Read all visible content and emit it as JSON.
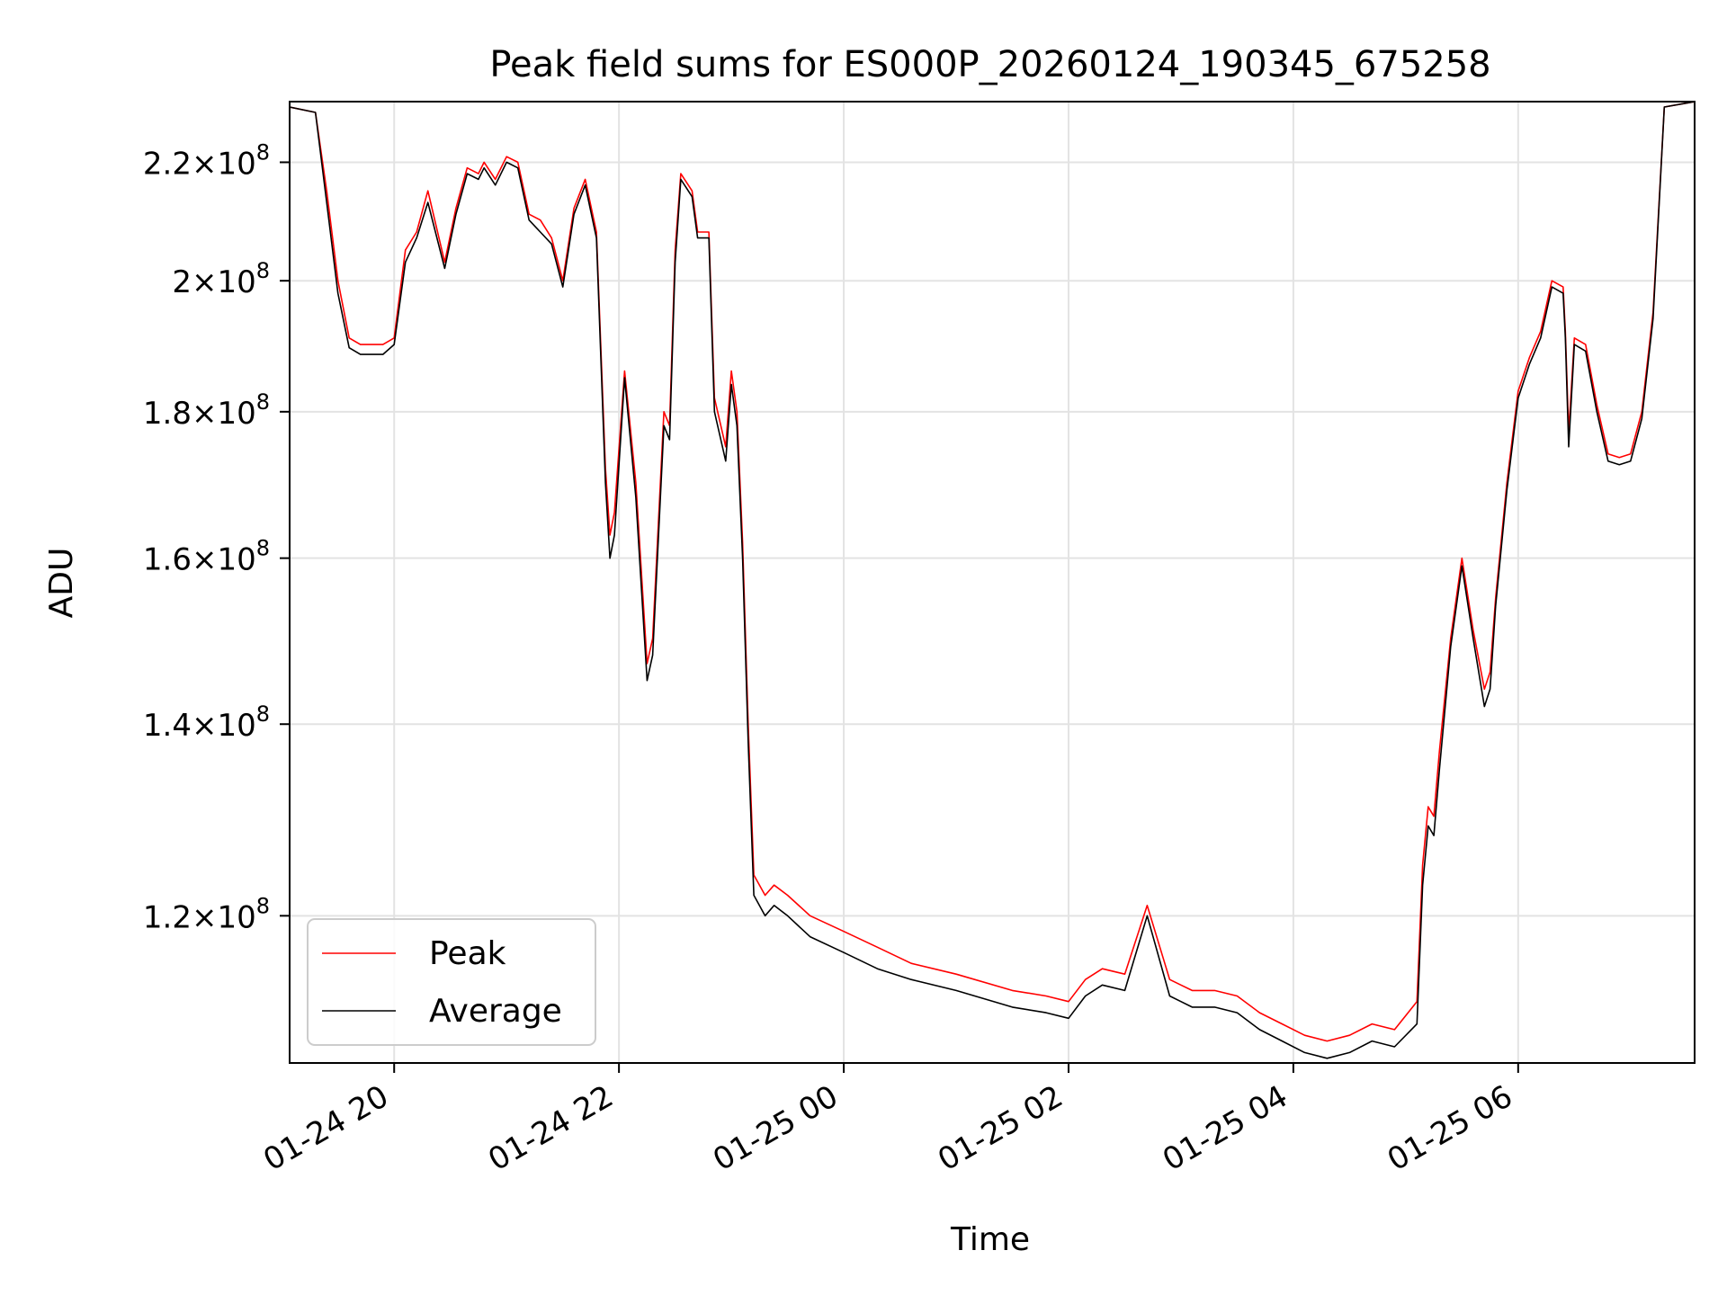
{
  "chart_data": {
    "type": "line",
    "title": "Peak field sums for ES000P_20260124_190345_675258",
    "xlabel": "Time",
    "ylabel": "ADU",
    "x_unit": "hours since 01-24 00:00",
    "xlim": [
      19.07,
      31.57
    ],
    "ylim": [
      106600000.0,
      231000000.0
    ],
    "y_scale": "log",
    "grid": true,
    "legend_position": "lower-left",
    "x_ticks": [
      {
        "value": 20,
        "label": "01-24 20"
      },
      {
        "value": 22,
        "label": "01-24 22"
      },
      {
        "value": 24,
        "label": "01-25 00"
      },
      {
        "value": 26,
        "label": "01-25 02"
      },
      {
        "value": 28,
        "label": "01-25 04"
      },
      {
        "value": 30,
        "label": "01-25 06"
      }
    ],
    "y_ticks": [
      {
        "value": 120000000.0,
        "label_mantissa": "1.2",
        "label_exp": "8"
      },
      {
        "value": 140000000.0,
        "label_mantissa": "1.4",
        "label_exp": "8"
      },
      {
        "value": 160000000.0,
        "label_mantissa": "1.6",
        "label_exp": "8"
      },
      {
        "value": 180000000.0,
        "label_mantissa": "1.8",
        "label_exp": "8"
      },
      {
        "value": 200000000.0,
        "label_mantissa": "2",
        "label_exp": "8"
      },
      {
        "value": 220000000.0,
        "label_mantissa": "2.2",
        "label_exp": "8"
      }
    ],
    "series": [
      {
        "name": "Peak",
        "color": "#ff0000",
        "x": [
          19.07,
          19.3,
          19.4,
          19.5,
          19.6,
          19.7,
          19.9,
          20.0,
          20.1,
          20.2,
          20.3,
          20.45,
          20.55,
          20.65,
          20.75,
          20.8,
          20.9,
          21.0,
          21.1,
          21.2,
          21.3,
          21.4,
          21.5,
          21.6,
          21.7,
          21.8,
          21.88,
          21.92,
          21.96,
          22.05,
          22.15,
          22.25,
          22.3,
          22.4,
          22.45,
          22.5,
          22.55,
          22.65,
          22.7,
          22.8,
          22.85,
          22.95,
          23.0,
          23.05,
          23.1,
          23.15,
          23.2,
          23.3,
          23.38,
          23.5,
          23.7,
          24.0,
          24.3,
          24.6,
          25.0,
          25.5,
          25.8,
          26.0,
          26.15,
          26.3,
          26.5,
          26.7,
          26.9,
          27.0,
          27.1,
          27.3,
          27.5,
          27.7,
          27.9,
          28.1,
          28.3,
          28.5,
          28.7,
          28.9,
          29.1,
          29.15,
          29.2,
          29.25,
          29.3,
          29.4,
          29.5,
          29.6,
          29.7,
          29.75,
          29.8,
          29.9,
          30.0,
          30.1,
          30.2,
          30.3,
          30.4,
          30.42,
          30.45,
          30.5,
          30.6,
          30.7,
          30.8,
          30.9,
          31.0,
          31.1,
          31.2,
          31.3,
          31.57
        ],
        "y": [
          230000000.0,
          229000000.0,
          215000000.0,
          200000000.0,
          191000000.0,
          190000000.0,
          190000000.0,
          191000000.0,
          205000000.0,
          208000000.0,
          215000000.0,
          203000000.0,
          212000000.0,
          219000000.0,
          218000000.0,
          220000000.0,
          217000000.0,
          221000000.0,
          220000000.0,
          211000000.0,
          210000000.0,
          207000000.0,
          200000000.0,
          212000000.0,
          217000000.0,
          208000000.0,
          172000000.0,
          163000000.0,
          166000000.0,
          186000000.0,
          170000000.0,
          147000000.0,
          150000000.0,
          180000000.0,
          178000000.0,
          205000000.0,
          218000000.0,
          215000000.0,
          208000000.0,
          208000000.0,
          182000000.0,
          175000000.0,
          186000000.0,
          180000000.0,
          162000000.0,
          140000000.0,
          124000000.0,
          122000000.0,
          123000000.0,
          122000000.0,
          120000000.0,
          118500000.0,
          117000000.0,
          115500000.0,
          114500000.0,
          113000000.0,
          112500000.0,
          112000000.0,
          114000000.0,
          115000000.0,
          114500000.0,
          121000000.0,
          114000000.0,
          113500000.0,
          113000000.0,
          113000000.0,
          112500000.0,
          111000000.0,
          110000000.0,
          109000000.0,
          108500000.0,
          109000000.0,
          110000000.0,
          109500000.0,
          112000000.0,
          125000000.0,
          131000000.0,
          130000000.0,
          137000000.0,
          150000000.0,
          160000000.0,
          151000000.0,
          144000000.0,
          146000000.0,
          155000000.0,
          170000000.0,
          183000000.0,
          188000000.0,
          192000000.0,
          200000000.0,
          199000000.0,
          192000000.0,
          177000000.0,
          191000000.0,
          190000000.0,
          181000000.0,
          174000000.0,
          173500000.0,
          174000000.0,
          180000000.0,
          195000000.0,
          230000000.0,
          231000000.0
        ]
      },
      {
        "name": "Average",
        "color": "#000000",
        "x": [
          19.07,
          19.3,
          19.4,
          19.5,
          19.6,
          19.7,
          19.9,
          20.0,
          20.1,
          20.2,
          20.3,
          20.45,
          20.55,
          20.65,
          20.75,
          20.8,
          20.9,
          21.0,
          21.1,
          21.2,
          21.3,
          21.4,
          21.5,
          21.6,
          21.7,
          21.8,
          21.88,
          21.92,
          21.96,
          22.05,
          22.15,
          22.25,
          22.3,
          22.4,
          22.45,
          22.5,
          22.55,
          22.65,
          22.7,
          22.8,
          22.85,
          22.95,
          23.0,
          23.05,
          23.1,
          23.15,
          23.2,
          23.3,
          23.38,
          23.5,
          23.7,
          24.0,
          24.3,
          24.6,
          25.0,
          25.5,
          25.8,
          26.0,
          26.15,
          26.3,
          26.5,
          26.7,
          26.9,
          27.0,
          27.1,
          27.3,
          27.5,
          27.7,
          27.9,
          28.1,
          28.3,
          28.5,
          28.7,
          28.9,
          29.1,
          29.15,
          29.2,
          29.25,
          29.3,
          29.4,
          29.5,
          29.6,
          29.7,
          29.75,
          29.8,
          29.9,
          30.0,
          30.1,
          30.2,
          30.3,
          30.4,
          30.42,
          30.45,
          30.5,
          30.6,
          30.7,
          30.8,
          30.9,
          31.0,
          31.1,
          31.2,
          31.3,
          31.57
        ],
        "y": [
          230000000.0,
          229000000.0,
          213000000.0,
          198000000.0,
          189500000.0,
          188500000.0,
          188500000.0,
          190000000.0,
          203000000.0,
          207000000.0,
          213000000.0,
          202000000.0,
          211000000.0,
          218000000.0,
          217000000.0,
          219000000.0,
          216000000.0,
          220000000.0,
          219000000.0,
          210000000.0,
          208000000.0,
          206000000.0,
          199000000.0,
          211000000.0,
          216000000.0,
          207000000.0,
          170000000.0,
          160000000.0,
          163000000.0,
          185000000.0,
          168000000.0,
          145000000.0,
          148000000.0,
          178000000.0,
          176000000.0,
          203000000.0,
          217000000.0,
          214000000.0,
          207000000.0,
          207000000.0,
          180000000.0,
          173000000.0,
          184000000.0,
          178000000.0,
          160000000.0,
          138000000.0,
          122000000.0,
          120000000.0,
          121000000.0,
          120000000.0,
          118000000.0,
          116500000.0,
          115000000.0,
          114000000.0,
          113000000.0,
          111500000.0,
          111000000.0,
          110500000.0,
          112500000.0,
          113500000.0,
          113000000.0,
          120000000.0,
          112500000.0,
          112000000.0,
          111500000.0,
          111500000.0,
          111000000.0,
          109500000.0,
          108500000.0,
          107500000.0,
          107000000.0,
          107500000.0,
          108500000.0,
          108000000.0,
          110000000.0,
          123000000.0,
          129000000.0,
          128000000.0,
          135000000.0,
          149000000.0,
          159000000.0,
          150000000.0,
          142000000.0,
          144000000.0,
          154000000.0,
          169000000.0,
          182000000.0,
          187000000.0,
          191000000.0,
          199000000.0,
          198000000.0,
          191000000.0,
          175000000.0,
          190000000.0,
          189000000.0,
          180000000.0,
          173000000.0,
          172500000.0,
          173000000.0,
          179000000.0,
          194000000.0,
          230000000.0,
          231000000.0
        ]
      }
    ],
    "legend": [
      {
        "label": "Peak",
        "color": "#ff0000"
      },
      {
        "label": "Average",
        "color": "#000000"
      }
    ]
  }
}
